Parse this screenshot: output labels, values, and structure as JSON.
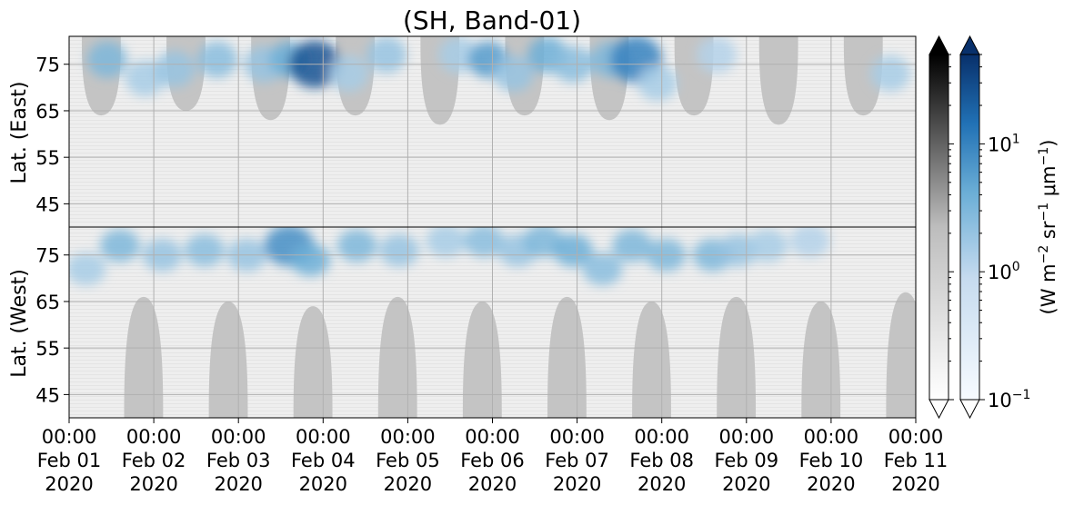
{
  "chart_data": {
    "type": "heatmap",
    "title": "(SH, Band-01)",
    "colorbar_label": "(W m$^{-2}$ sr$^{-1}$ μm$^{-1}$)",
    "colormaps": [
      "gray",
      "Blues"
    ],
    "colorbar_scale": "log",
    "colorbar_range": [
      0.1,
      50
    ],
    "colorbar_ticks": [
      {
        "base": "10",
        "exp": "−1",
        "value": 0.1
      },
      {
        "base": "10",
        "exp": "0",
        "value": 1
      },
      {
        "base": "10",
        "exp": "1",
        "value": 10
      }
    ],
    "colorbar_extend": "both",
    "upper_panel": {
      "ylabel": "Lat. (East)",
      "ylim": [
        40,
        81
      ],
      "yticks": [
        "45",
        "55",
        "65",
        "75"
      ],
      "ytick_values": [
        45,
        55,
        65,
        75
      ]
    },
    "lower_panel": {
      "ylabel": "Lat. (West)",
      "ylim": [
        81,
        40
      ],
      "yticks": [
        "75",
        "65",
        "55",
        "45"
      ],
      "ytick_values": [
        75,
        65,
        55,
        45
      ]
    },
    "x_range": [
      "2020-02-01 00:00",
      "2020-02-11 00:00"
    ],
    "x_days": [
      "2020-02-01",
      "2020-02-02",
      "2020-02-03",
      "2020-02-04",
      "2020-02-05",
      "2020-02-06",
      "2020-02-07",
      "2020-02-08",
      "2020-02-09",
      "2020-02-10",
      "2020-02-11"
    ],
    "xticks": [
      {
        "time": "00:00",
        "date": "Feb 01",
        "year": "2020"
      },
      {
        "time": "00:00",
        "date": "Feb 02",
        "year": "2020"
      },
      {
        "time": "00:00",
        "date": "Feb 03",
        "year": "2020"
      },
      {
        "time": "00:00",
        "date": "Feb 04",
        "year": "2020"
      },
      {
        "time": "00:00",
        "date": "Feb 05",
        "year": "2020"
      },
      {
        "time": "00:00",
        "date": "Feb 06",
        "year": "2020"
      },
      {
        "time": "00:00",
        "date": "Feb 07",
        "year": "2020"
      },
      {
        "time": "00:00",
        "date": "Feb 08",
        "year": "2020"
      },
      {
        "time": "00:00",
        "date": "Feb 09",
        "year": "2020"
      },
      {
        "time": "00:00",
        "date": "Feb 10",
        "year": "2020"
      },
      {
        "time": "00:00",
        "date": "Feb 11",
        "year": "2020"
      }
    ],
    "grid": true,
    "no_data_color": "#c4c4c4",
    "no_data_regions_east": [
      {
        "day": 0.38,
        "min_lat": 64
      },
      {
        "day": 1.38,
        "min_lat": 65
      },
      {
        "day": 2.38,
        "min_lat": 63
      },
      {
        "day": 3.38,
        "min_lat": 64
      },
      {
        "day": 4.38,
        "min_lat": 62
      },
      {
        "day": 5.38,
        "min_lat": 64
      },
      {
        "day": 6.38,
        "min_lat": 63
      },
      {
        "day": 7.38,
        "min_lat": 64
      },
      {
        "day": 8.38,
        "min_lat": 62
      },
      {
        "day": 9.38,
        "min_lat": 64
      }
    ],
    "no_data_regions_west": [
      {
        "day": 0.88,
        "min_lat": 66
      },
      {
        "day": 1.88,
        "min_lat": 65
      },
      {
        "day": 2.88,
        "min_lat": 64
      },
      {
        "day": 3.88,
        "min_lat": 66
      },
      {
        "day": 4.88,
        "min_lat": 65
      },
      {
        "day": 5.88,
        "min_lat": 66
      },
      {
        "day": 6.88,
        "min_lat": 65
      },
      {
        "day": 7.88,
        "min_lat": 66
      },
      {
        "day": 8.88,
        "min_lat": 65
      },
      {
        "day": 9.88,
        "min_lat": 67
      }
    ],
    "aurora_blobs_east": [
      {
        "day": 0.45,
        "lat": 76,
        "value": 3
      },
      {
        "day": 0.9,
        "lat": 72,
        "value": 1.5
      },
      {
        "day": 1.25,
        "lat": 74,
        "value": 2
      },
      {
        "day": 1.75,
        "lat": 76,
        "value": 2.5
      },
      {
        "day": 2.3,
        "lat": 75,
        "value": 2
      },
      {
        "day": 2.6,
        "lat": 76,
        "value": 4
      },
      {
        "day": 2.9,
        "lat": 75,
        "value": 25
      },
      {
        "day": 3.3,
        "lat": 73,
        "value": 1.5
      },
      {
        "day": 3.75,
        "lat": 77,
        "value": 2
      },
      {
        "day": 4.6,
        "lat": 77,
        "value": 1.5
      },
      {
        "day": 4.95,
        "lat": 76,
        "value": 6
      },
      {
        "day": 5.25,
        "lat": 73,
        "value": 2
      },
      {
        "day": 5.65,
        "lat": 77,
        "value": 4
      },
      {
        "day": 5.95,
        "lat": 75,
        "value": 2.5
      },
      {
        "day": 6.4,
        "lat": 76,
        "value": 3
      },
      {
        "day": 6.7,
        "lat": 76,
        "value": 10
      },
      {
        "day": 6.95,
        "lat": 71,
        "value": 1.5
      },
      {
        "day": 7.65,
        "lat": 77,
        "value": 1.2
      },
      {
        "day": 9.7,
        "lat": 73,
        "value": 1.5
      }
    ],
    "aurora_blobs_west": [
      {
        "day": 0.2,
        "lat": 72,
        "value": 1.5
      },
      {
        "day": 0.6,
        "lat": 77,
        "value": 3
      },
      {
        "day": 1.1,
        "lat": 75,
        "value": 2
      },
      {
        "day": 1.6,
        "lat": 76,
        "value": 2.5
      },
      {
        "day": 2.1,
        "lat": 75,
        "value": 2
      },
      {
        "day": 2.6,
        "lat": 77,
        "value": 8
      },
      {
        "day": 2.85,
        "lat": 74,
        "value": 4
      },
      {
        "day": 3.4,
        "lat": 77,
        "value": 3
      },
      {
        "day": 3.9,
        "lat": 76,
        "value": 2
      },
      {
        "day": 4.45,
        "lat": 78,
        "value": 1.5
      },
      {
        "day": 4.9,
        "lat": 78,
        "value": 2.5
      },
      {
        "day": 5.3,
        "lat": 76,
        "value": 2
      },
      {
        "day": 5.6,
        "lat": 78,
        "value": 3
      },
      {
        "day": 5.95,
        "lat": 76,
        "value": 4
      },
      {
        "day": 6.3,
        "lat": 72,
        "value": 2.5
      },
      {
        "day": 6.65,
        "lat": 77,
        "value": 3
      },
      {
        "day": 7.05,
        "lat": 75,
        "value": 3
      },
      {
        "day": 7.6,
        "lat": 75,
        "value": 3
      },
      {
        "day": 7.9,
        "lat": 76,
        "value": 2
      },
      {
        "day": 8.25,
        "lat": 77,
        "value": 1.5
      },
      {
        "day": 8.75,
        "lat": 78,
        "value": 1.2
      }
    ]
  }
}
